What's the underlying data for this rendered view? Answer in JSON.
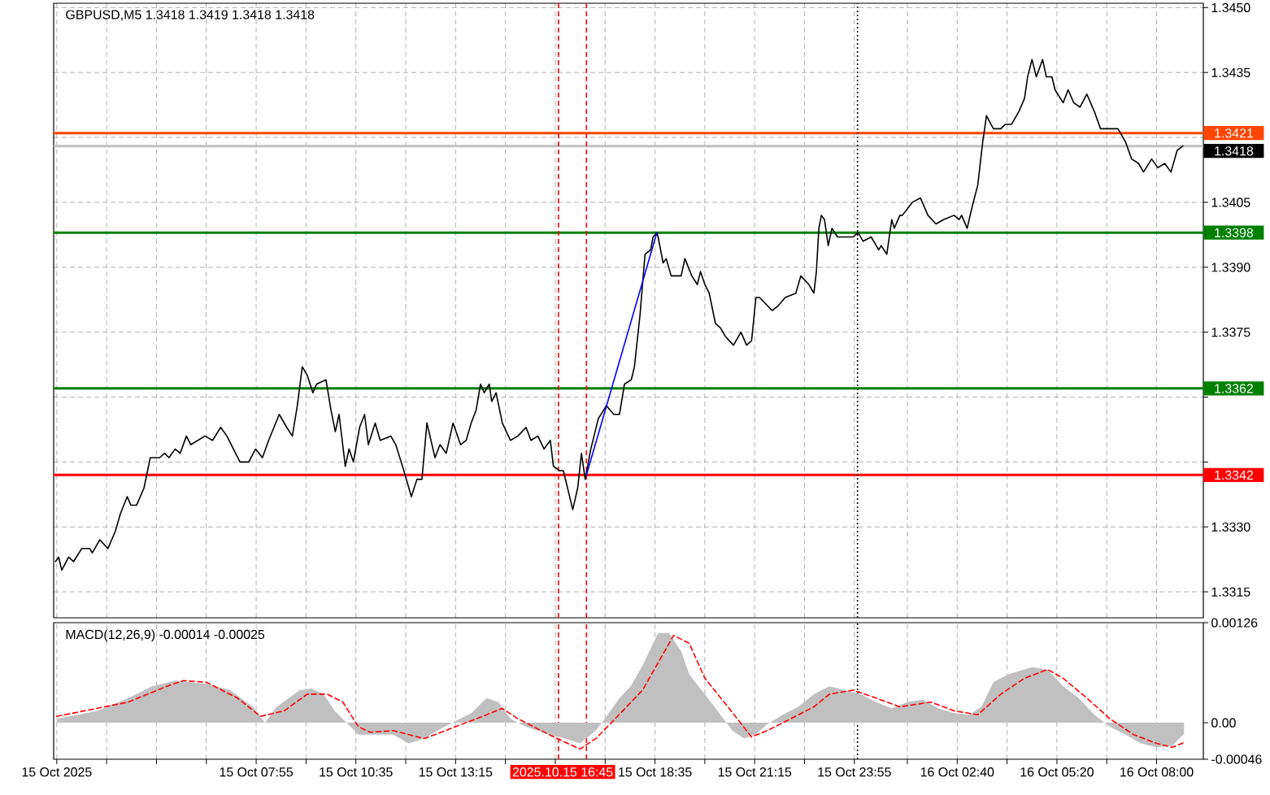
{
  "chart_data": [
    {
      "type": "line",
      "title": "GBPUSD,M5 1.3418 1.3419 1.3418 1.3418",
      "xlim": [
        "2025-10-15T02:30",
        "2025-10-16T09:15"
      ],
      "ylim": [
        1.3309,
        1.3451
      ],
      "xticks": [
        "2025-10-15T02:35",
        "2025-10-15T03:55",
        "2025-10-15T05:15",
        "2025-10-15T06:35",
        "2025-10-15T07:55",
        "2025-10-15T09:15",
        "2025-10-15T10:35",
        "2025-10-15T11:55",
        "2025-10-15T13:15",
        "2025-10-15T14:35",
        "2025-10-15T15:55",
        "2025-10-15T17:15",
        "2025-10-15T18:35",
        "2025-10-15T19:55",
        "2025-10-15T21:15",
        "2025-10-15T22:35",
        "2025-10-15T23:55",
        "2025-10-16T01:20",
        "2025-10-16T02:40",
        "2025-10-16T04:00",
        "2025-10-16T05:20",
        "2025-10-16T06:40",
        "2025-10-16T08:00"
      ],
      "yticks": [
        {
          "value": 1.345,
          "label": "1.3450"
        },
        1.3435,
        {
          "value": 1.342,
          "label": null
        },
        1.3405,
        {
          "value": 1.339,
          "label": "1.3390"
        },
        1.3375,
        {
          "value": 1.336,
          "label": null
        },
        {
          "value": 1.3345,
          "label": null
        },
        {
          "value": 1.333,
          "label": "1.3330"
        },
        1.3315
      ],
      "tick_labels": "y",
      "grid": true,
      "ref_lines": [
        {
          "axis": "y",
          "value": 1.3421,
          "label": "1.3421",
          "color": "#ff4500"
        },
        {
          "axis": "y",
          "value": 1.3418,
          "label": "1.3418",
          "color": "#c0c0c0"
        },
        {
          "axis": "y",
          "value": 1.3398,
          "label": "1.3398",
          "color": "#008000"
        },
        {
          "axis": "y",
          "value": 1.3362,
          "label": "1.3362",
          "color": "#008000"
        },
        {
          "axis": "y",
          "value": 1.3342,
          "label": "1.3342",
          "color": "#ff0000"
        },
        {
          "axis": "x",
          "value": "2025-10-15T16:00",
          "color": "#ff0000",
          "line_style": "dashed"
        },
        {
          "axis": "x",
          "value": "2025-10-15T16:45",
          "color": "#ff0000",
          "line_style": "dashed"
        },
        {
          "axis": "x",
          "value": "2025-10-16T00:00",
          "color": "#000000",
          "line_style": "dotted"
        }
      ],
      "series": [
        {
          "color": "#000000",
          "x": [
            "2025-10-15T02:33",
            "2025-10-15T02:38",
            "2025-10-15T02:43",
            "2025-10-15T02:54",
            "2025-10-15T03:02",
            "2025-10-15T03:15",
            "2025-10-15T03:28",
            "2025-10-15T03:32",
            "2025-10-15T03:44",
            "2025-10-15T03:57",
            "2025-10-15T04:09",
            "2025-10-15T04:17",
            "2025-10-15T04:28",
            "2025-10-15T04:34",
            "2025-10-15T04:43",
            "2025-10-15T04:55",
            "2025-10-15T05:05",
            "2025-10-15T05:20",
            "2025-10-15T05:28",
            "2025-10-15T05:35",
            "2025-10-15T05:45",
            "2025-10-15T05:53",
            "2025-10-15T06:03",
            "2025-10-15T06:10",
            "2025-10-15T06:33",
            "2025-10-15T06:45",
            "2025-10-15T06:58",
            "2025-10-15T07:08",
            "2025-10-15T07:29",
            "2025-10-15T07:43",
            "2025-10-15T07:54",
            "2025-10-15T08:05",
            "2025-10-15T08:15",
            "2025-10-15T08:32",
            "2025-10-15T08:44",
            "2025-10-15T08:53",
            "2025-10-15T09:01",
            "2025-10-15T09:09",
            "2025-10-15T09:17",
            "2025-10-15T09:26",
            "2025-10-15T09:32",
            "2025-10-15T09:47",
            "2025-10-15T09:55",
            "2025-10-15T10:02",
            "2025-10-15T10:08",
            "2025-10-15T10:18",
            "2025-10-15T10:24",
            "2025-10-15T10:31",
            "2025-10-15T10:41",
            "2025-10-15T10:49",
            "2025-10-15T10:55",
            "2025-10-15T11:06",
            "2025-10-15T11:14",
            "2025-10-15T11:31",
            "2025-10-15T11:39",
            "2025-10-15T11:52",
            "2025-10-15T12:04",
            "2025-10-15T12:13",
            "2025-10-15T12:21",
            "2025-10-15T12:29",
            "2025-10-15T12:42",
            "2025-10-15T12:50",
            "2025-10-15T13:00",
            "2025-10-15T13:11",
            "2025-10-15T13:23",
            "2025-10-15T13:32",
            "2025-10-15T13:40",
            "2025-10-15T13:48",
            "2025-10-15T13:55",
            "2025-10-15T14:01",
            "2025-10-15T14:09",
            "2025-10-15T14:13",
            "2025-10-15T14:20",
            "2025-10-15T14:30",
            "2025-10-15T14:43",
            "2025-10-15T14:55",
            "2025-10-15T15:08",
            "2025-10-15T15:16",
            "2025-10-15T15:27",
            "2025-10-15T15:37",
            "2025-10-15T15:47",
            "2025-10-15T15:52",
            "2025-10-15T16:02",
            "2025-10-15T16:08",
            "2025-10-15T16:18",
            "2025-10-15T16:23",
            "2025-10-15T16:31",
            "2025-10-15T16:37",
            "2025-10-15T16:43",
            "2025-10-15T16:52",
            "2025-10-15T17:04",
            "2025-10-15T17:17",
            "2025-10-15T17:29",
            "2025-10-15T17:38",
            "2025-10-15T17:46",
            "2025-10-15T17:57",
            "2025-10-15T18:02",
            "2025-10-15T18:11",
            "2025-10-15T18:19",
            "2025-10-15T18:28",
            "2025-10-15T18:32",
            "2025-10-15T18:38",
            "2025-10-15T18:40",
            "2025-10-15T18:48",
            "2025-10-15T18:53",
            "2025-10-15T19:01",
            "2025-10-15T19:17",
            "2025-10-15T19:23",
            "2025-10-15T19:34",
            "2025-10-15T19:43",
            "2025-10-15T19:48",
            "2025-10-15T19:55",
            "2025-10-15T20:02",
            "2025-10-15T20:12",
            "2025-10-15T20:20",
            "2025-10-15T20:28",
            "2025-10-15T20:41",
            "2025-10-15T20:53",
            "2025-10-15T21:02",
            "2025-10-15T21:10",
            "2025-10-15T21:17",
            "2025-10-15T21:23",
            "2025-10-15T21:43",
            "2025-10-15T21:52",
            "2025-10-15T22:04",
            "2025-10-15T22:21",
            "2025-10-15T22:29",
            "2025-10-15T22:42",
            "2025-10-15T22:50",
            "2025-10-15T22:54",
            "2025-10-15T22:58",
            "2025-10-15T23:02",
            "2025-10-15T23:07",
            "2025-10-15T23:13",
            "2025-10-15T23:19",
            "2025-10-15T23:28",
            "2025-10-15T23:40",
            "2025-10-15T23:53",
            "2025-10-16T00:01",
            "2025-10-16T00:09",
            "2025-10-16T00:22",
            "2025-10-16T00:34",
            "2025-10-16T00:38",
            "2025-10-16T00:47",
            "2025-10-16T00:51",
            "2025-10-16T00:55",
            "2025-10-16T00:59",
            "2025-10-16T01:08",
            "2025-10-16T01:12",
            "2025-10-16T01:28",
            "2025-10-16T01:41",
            "2025-10-16T01:53",
            "2025-10-16T02:06",
            "2025-10-16T02:18",
            "2025-10-16T02:35",
            "2025-10-16T02:43",
            "2025-10-16T02:47",
            "2025-10-16T02:56",
            "2025-10-16T03:04",
            "2025-10-16T03:13",
            "2025-10-16T03:21",
            "2025-10-16T03:27",
            "2025-10-16T03:38",
            "2025-10-16T03:50",
            "2025-10-16T03:57",
            "2025-10-16T04:07",
            "2025-10-16T04:19",
            "2025-10-16T04:28",
            "2025-10-16T04:33",
            "2025-10-16T04:40",
            "2025-10-16T04:47",
            "2025-10-16T04:57",
            "2025-10-16T05:03",
            "2025-10-16T05:12",
            "2025-10-16T05:17",
            "2025-10-16T05:30",
            "2025-10-16T05:38",
            "2025-10-16T05:47",
            "2025-10-16T05:57",
            "2025-10-16T06:08",
            "2025-10-16T06:20",
            "2025-10-16T06:30",
            "2025-10-16T06:41",
            "2025-10-16T06:58",
            "2025-10-16T07:10",
            "2025-10-16T07:20",
            "2025-10-16T07:31",
            "2025-10-16T07:39",
            "2025-10-16T07:52",
            "2025-10-16T08:02",
            "2025-10-16T08:13",
            "2025-10-16T08:23",
            "2025-10-16T08:33",
            "2025-10-16T08:42"
          ],
          "values": [
            1.3322,
            1.3323,
            1.332,
            1.3323,
            1.3322,
            1.3325,
            1.3325,
            1.3324,
            1.3327,
            1.3325,
            1.3329,
            1.3333,
            1.3337,
            1.3335,
            1.3335,
            1.3339,
            1.3346,
            1.3346,
            1.3347,
            1.3346,
            1.3348,
            1.3347,
            1.3351,
            1.3349,
            1.3351,
            1.335,
            1.3353,
            1.3351,
            1.3345,
            1.3345,
            1.3348,
            1.3346,
            1.335,
            1.3356,
            1.3353,
            1.3351,
            1.3358,
            1.3367,
            1.3365,
            1.3361,
            1.3363,
            1.3364,
            1.3357,
            1.3352,
            1.3356,
            1.3344,
            1.3348,
            1.3345,
            1.3353,
            1.3356,
            1.3349,
            1.3354,
            1.335,
            1.3351,
            1.3349,
            1.3343,
            1.3337,
            1.3341,
            1.3341,
            1.3354,
            1.3346,
            1.3349,
            1.3347,
            1.3354,
            1.3349,
            1.335,
            1.3354,
            1.3357,
            1.3363,
            1.3361,
            1.3363,
            1.3359,
            1.3361,
            1.3354,
            1.335,
            1.3351,
            1.3353,
            1.335,
            1.3351,
            1.3348,
            1.335,
            1.3344,
            1.3343,
            1.3343,
            1.3337,
            1.3334,
            1.3339,
            1.3347,
            1.3341,
            1.3348,
            1.3355,
            1.3358,
            1.3356,
            1.3356,
            1.3363,
            1.3364,
            1.3367,
            1.3379,
            1.3393,
            1.3394,
            1.3397,
            1.3398,
            1.3397,
            1.3391,
            1.3392,
            1.3388,
            1.3388,
            1.3392,
            1.3388,
            1.3386,
            1.3389,
            1.3386,
            1.3384,
            1.3377,
            1.3376,
            1.3374,
            1.3372,
            1.3375,
            1.3372,
            1.3373,
            1.3383,
            1.3383,
            1.338,
            1.3381,
            1.3383,
            1.3384,
            1.3388,
            1.3386,
            1.3384,
            1.3389,
            1.3399,
            1.3402,
            1.3401,
            1.3395,
            1.3399,
            1.3397,
            1.3397,
            1.3397,
            1.3398,
            1.3396,
            1.3397,
            1.3394,
            1.3395,
            1.3393,
            1.3397,
            1.3401,
            1.3399,
            1.3402,
            1.3402,
            1.3405,
            1.3406,
            1.3402,
            1.34,
            1.3401,
            1.3402,
            1.3401,
            1.3402,
            1.3399,
            1.3404,
            1.3409,
            1.3419,
            1.3425,
            1.3422,
            1.3422,
            1.3423,
            1.3423,
            1.3426,
            1.3429,
            1.3434,
            1.3438,
            1.3434,
            1.3438,
            1.3434,
            1.3434,
            1.3431,
            1.3428,
            1.3431,
            1.3428,
            1.3427,
            1.343,
            1.3426,
            1.3422,
            1.3422,
            1.3422,
            1.3419,
            1.3415,
            1.3414,
            1.3412,
            1.3415,
            1.3413,
            1.3414,
            1.3412,
            1.3417,
            1.3418
          ]
        },
        {
          "type": "line",
          "color": "#0000ff",
          "x": [
            "2025-10-15T16:45",
            "2025-10-15T18:38"
          ],
          "values": [
            1.3342,
            1.3398
          ]
        }
      ]
    },
    {
      "type": "line",
      "title": "MACD(12,26,9) -0.00014 -0.00025",
      "xlim": [
        "2025-10-15T02:30",
        "2025-10-16T09:15"
      ],
      "ylim": [
        -0.00046,
        0.00126
      ],
      "xticks": [
        {
          "value": "2025-10-15T02:35",
          "label": "15 Oct 2025"
        },
        {
          "value": "2025-10-15T03:55",
          "label": null
        },
        {
          "value": "2025-10-15T05:15",
          "label": null
        },
        {
          "value": "2025-10-15T06:35",
          "label": null
        },
        {
          "value": "2025-10-15T07:55",
          "label": "15 Oct 07:55"
        },
        {
          "value": "2025-10-15T09:15",
          "label": null
        },
        {
          "value": "2025-10-15T10:35",
          "label": "15 Oct 10:35"
        },
        {
          "value": "2025-10-15T11:55",
          "label": null
        },
        {
          "value": "2025-10-15T13:15",
          "label": "15 Oct 13:15"
        },
        {
          "value": "2025-10-15T14:35",
          "label": null
        },
        {
          "value": "2025-10-15T15:55",
          "label": null
        },
        {
          "value": "2025-10-15T17:15",
          "label": null
        },
        {
          "value": "2025-10-15T18:35",
          "label": "15 Oct 18:35"
        },
        {
          "value": "2025-10-15T19:55",
          "label": null
        },
        {
          "value": "2025-10-15T21:15",
          "label": "15 Oct 21:15"
        },
        {
          "value": "2025-10-15T22:35",
          "label": null
        },
        {
          "value": "2025-10-15T23:55",
          "label": "15 Oct 23:55"
        },
        {
          "value": "2025-10-16T01:20",
          "label": null
        },
        {
          "value": "2025-10-16T02:40",
          "label": "16 Oct 02:40"
        },
        {
          "value": "2025-10-16T04:00",
          "label": null
        },
        {
          "value": "2025-10-16T05:20",
          "label": "16 Oct 05:20"
        },
        {
          "value": "2025-10-16T06:40",
          "label": null
        },
        {
          "value": "2025-10-16T08:00",
          "label": "16 Oct 08:00"
        }
      ],
      "yticks": [
        0.00126,
        {
          "value": 0,
          "label": "0.00"
        },
        -0.00046
      ],
      "grid": "x",
      "ref_lines": [
        {
          "axis": "x",
          "value": "2025-10-15T16:00",
          "color": "#ff0000",
          "line_style": "dashed"
        },
        {
          "axis": "x",
          "value": "2025-10-15T16:45",
          "label": "2025.10.15 16:45",
          "color": "#ff0000",
          "line_style": "dashed"
        },
        {
          "axis": "x",
          "value": "2025-10-16T00:00",
          "color": "#000000",
          "line_style": "dotted"
        }
      ],
      "series": [
        {
          "type": "area",
          "color": "#c0c0c0",
          "x": [
            "2025-10-15T02:35",
            "2025-10-15T03:40",
            "2025-10-15T04:30",
            "2025-10-15T05:08",
            "2025-10-15T05:45",
            "2025-10-15T06:35",
            "2025-10-15T07:13",
            "2025-10-15T07:50",
            "2025-10-15T08:09",
            "2025-10-15T08:28",
            "2025-10-15T09:05",
            "2025-10-15T09:24",
            "2025-10-15T09:43",
            "2025-10-15T10:01",
            "2025-10-15T10:20",
            "2025-10-15T10:39",
            "2025-10-15T11:35",
            "2025-10-15T12:00",
            "2025-10-15T12:25",
            "2025-10-15T12:50",
            "2025-10-15T13:15",
            "2025-10-15T13:40",
            "2025-10-15T14:05",
            "2025-10-15T14:24",
            "2025-10-15T14:43",
            "2025-10-15T15:08",
            "2025-10-15T15:45",
            "2025-10-15T16:10",
            "2025-10-15T16:35",
            "2025-10-15T17:00",
            "2025-10-15T17:19",
            "2025-10-15T17:38",
            "2025-10-15T17:56",
            "2025-10-15T18:15",
            "2025-10-15T18:40",
            "2025-10-15T18:58",
            "2025-10-15T19:17",
            "2025-10-15T19:30",
            "2025-10-15T19:55",
            "2025-10-15T20:20",
            "2025-10-15T20:39",
            "2025-10-15T20:58",
            "2025-10-15T21:16",
            "2025-10-15T21:35",
            "2025-10-15T22:00",
            "2025-10-15T22:25",
            "2025-10-15T22:50",
            "2025-10-15T23:15",
            "2025-10-15T23:40",
            "2025-10-16T00:05",
            "2025-10-16T00:30",
            "2025-10-16T00:55",
            "2025-10-16T01:20",
            "2025-10-16T01:45",
            "2025-10-16T02:10",
            "2025-10-16T02:35",
            "2025-10-16T03:00",
            "2025-10-16T03:19",
            "2025-10-16T03:38",
            "2025-10-16T04:02",
            "2025-10-16T04:40",
            "2025-10-16T05:05",
            "2025-10-16T05:30",
            "2025-10-16T05:55",
            "2025-10-16T06:20",
            "2025-10-16T06:45",
            "2025-10-16T07:10",
            "2025-10-16T07:35",
            "2025-10-16T08:00",
            "2025-10-16T08:25",
            "2025-10-16T08:44"
          ],
          "values": [
            5e-05,
            0.00015,
            0.00031,
            0.00046,
            0.00053,
            0.00049,
            0.00041,
            0.0002,
            0.0,
            0.0002,
            0.00041,
            0.00043,
            0.00036,
            0.00015,
            0.0,
            -0.00015,
            -0.00015,
            -0.00026,
            -0.0002,
            -8e-05,
            2e-05,
            0.00012,
            0.00031,
            0.00026,
            5e-05,
            -5e-05,
            -0.00015,
            -0.0002,
            -0.00026,
            -0.0001,
            0.0001,
            0.00031,
            0.00046,
            0.00072,
            0.00113,
            0.00113,
            0.0009,
            0.00061,
            0.00036,
            0.0001,
            -0.0001,
            -0.0002,
            -0.00015,
            -2e-05,
            0.0001,
            0.0002,
            0.00036,
            0.00046,
            0.00041,
            0.00036,
            0.00026,
            0.00018,
            0.00026,
            0.00029,
            0.00018,
            0.00012,
            0.0001,
            0.0002,
            0.00051,
            0.00061,
            0.0007,
            0.00067,
            0.00046,
            0.00031,
            0.0001,
            -5e-05,
            -0.00015,
            -0.00026,
            -0.00031,
            -0.00029,
            -0.00014
          ]
        },
        {
          "type": "line",
          "color": "#ff0000",
          "line_style": "dashed",
          "x": [
            "2025-10-15T02:35",
            "2025-10-15T04:30",
            "2025-10-15T05:32",
            "2025-10-15T05:58",
            "2025-10-15T06:35",
            "2025-10-15T07:25",
            "2025-10-15T08:02",
            "2025-10-15T08:40",
            "2025-10-15T09:17",
            "2025-10-15T09:49",
            "2025-10-15T10:14",
            "2025-10-15T10:39",
            "2025-10-15T10:58",
            "2025-10-15T11:35",
            "2025-10-15T12:00",
            "2025-10-15T12:25",
            "2025-10-15T13:15",
            "2025-10-15T14:05",
            "2025-10-15T14:30",
            "2025-10-15T14:55",
            "2025-10-15T15:45",
            "2025-10-15T16:23",
            "2025-10-15T16:35",
            "2025-10-15T17:00",
            "2025-10-15T17:25",
            "2025-10-15T18:15",
            "2025-10-15T19:05",
            "2025-10-15T19:30",
            "2025-10-15T19:55",
            "2025-10-15T20:32",
            "2025-10-15T21:10",
            "2025-10-15T21:35",
            "2025-10-15T22:13",
            "2025-10-15T22:50",
            "2025-10-15T23:15",
            "2025-10-15T23:53",
            "2025-10-16T00:30",
            "2025-10-16T01:08",
            "2025-10-16T01:58",
            "2025-10-16T02:35",
            "2025-10-16T03:13",
            "2025-10-16T03:50",
            "2025-10-16T04:28",
            "2025-10-16T05:05",
            "2025-10-16T05:30",
            "2025-10-16T06:08",
            "2025-10-16T06:45",
            "2025-10-16T07:23",
            "2025-10-16T08:00",
            "2025-10-16T08:25",
            "2025-10-16T08:44"
          ],
          "values": [
            8e-05,
            0.00026,
            0.00046,
            0.00053,
            0.00051,
            0.00031,
            8e-05,
            0.00015,
            0.00036,
            0.00036,
            0.00026,
            -5e-05,
            -0.00012,
            -0.0001,
            -0.00015,
            -0.0002,
            -5e-05,
            0.0001,
            0.00018,
            5e-05,
            -0.00015,
            -0.00029,
            -0.00033,
            -0.0002,
            0.0,
            0.00041,
            0.0011,
            0.001,
            0.00056,
            0.0002,
            -0.00018,
            -0.0001,
            5e-05,
            0.0002,
            0.00036,
            0.00041,
            0.00031,
            0.0002,
            0.00026,
            0.00015,
            0.0001,
            0.00036,
            0.00056,
            0.00067,
            0.00056,
            0.00031,
            5e-05,
            -0.00015,
            -0.00026,
            -0.00031,
            -0.00025
          ]
        }
      ]
    }
  ]
}
